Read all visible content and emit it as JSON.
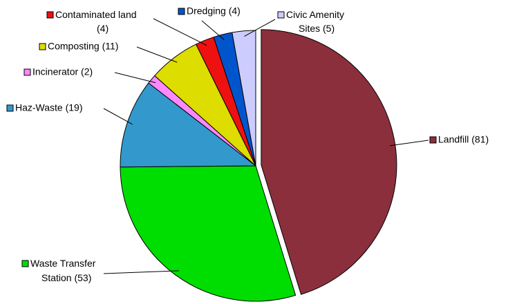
{
  "chart_data": {
    "type": "pie",
    "categories": [
      "Landfill (81)",
      "Waste Transfer Station (53)",
      "Haz-Waste (19)",
      "Incinerator (2)",
      "Composting (11)",
      "Contaminated land (4)",
      "Dredging (4)",
      "Civic Amenity Sites (5)"
    ],
    "values": [
      81,
      53,
      19,
      2,
      11,
      4,
      4,
      5
    ],
    "colors": [
      "#8b2f3c",
      "#00dd00",
      "#3399cc",
      "#ff88ff",
      "#dddd00",
      "#ee1111",
      "#0055cc",
      "#ccccff"
    ]
  }
}
